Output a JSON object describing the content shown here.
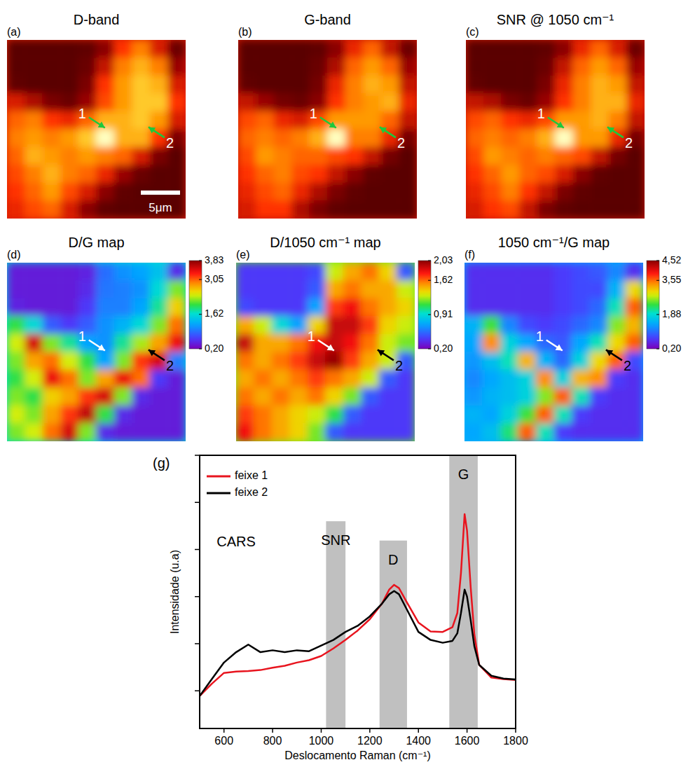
{
  "chart_data": [
    {
      "type": "heatmap",
      "title": "D-band",
      "panel_label": "(a)",
      "color": "hot",
      "zlim": [
        0,
        1
      ],
      "scale_bar": "5μm",
      "markers": [
        {
          "label": "1",
          "x": 5.6,
          "y": 5.0,
          "color": "#1ec83c"
        },
        {
          "label": "2",
          "x": 7.8,
          "y": 4.8,
          "color": "#1ec83c"
        }
      ],
      "cells": [
        [
          0.1,
          0.1,
          0.1,
          0.1,
          0.12,
          0.25,
          0.55,
          0.7,
          0.45,
          0.15
        ],
        [
          0.1,
          0.1,
          0.1,
          0.1,
          0.15,
          0.4,
          0.7,
          0.8,
          0.7,
          0.3
        ],
        [
          0.12,
          0.1,
          0.1,
          0.1,
          0.2,
          0.55,
          0.75,
          0.85,
          0.8,
          0.45
        ],
        [
          0.45,
          0.35,
          0.2,
          0.15,
          0.3,
          0.6,
          0.75,
          0.85,
          0.85,
          0.55
        ],
        [
          0.65,
          0.7,
          0.55,
          0.5,
          0.65,
          0.8,
          0.8,
          0.85,
          0.75,
          0.45
        ],
        [
          0.7,
          0.75,
          0.7,
          0.75,
          0.85,
          1.0,
          0.8,
          0.8,
          0.55,
          0.2
        ],
        [
          0.65,
          0.8,
          0.75,
          0.7,
          0.75,
          0.7,
          0.65,
          0.45,
          0.2,
          0.1
        ],
        [
          0.6,
          0.7,
          0.8,
          0.7,
          0.65,
          0.5,
          0.3,
          0.15,
          0.1,
          0.1
        ],
        [
          0.55,
          0.65,
          0.75,
          0.6,
          0.45,
          0.25,
          0.12,
          0.1,
          0.1,
          0.1
        ],
        [
          0.5,
          0.6,
          0.65,
          0.45,
          0.25,
          0.12,
          0.1,
          0.1,
          0.1,
          0.1
        ]
      ]
    },
    {
      "type": "heatmap",
      "title": "G-band",
      "panel_label": "(b)",
      "color": "hot",
      "zlim": [
        0,
        1
      ],
      "markers": [
        {
          "label": "1",
          "x": 5.6,
          "y": 5.0,
          "color": "#1ec83c"
        },
        {
          "label": "2",
          "x": 7.8,
          "y": 4.8,
          "color": "#1ec83c"
        }
      ],
      "cells": [
        [
          0.1,
          0.1,
          0.1,
          0.1,
          0.12,
          0.25,
          0.5,
          0.65,
          0.4,
          0.15
        ],
        [
          0.1,
          0.1,
          0.1,
          0.1,
          0.15,
          0.35,
          0.65,
          0.75,
          0.65,
          0.3
        ],
        [
          0.12,
          0.1,
          0.1,
          0.1,
          0.18,
          0.5,
          0.7,
          0.8,
          0.75,
          0.4
        ],
        [
          0.4,
          0.3,
          0.18,
          0.15,
          0.25,
          0.55,
          0.7,
          0.75,
          0.8,
          0.5
        ],
        [
          0.6,
          0.65,
          0.5,
          0.45,
          0.6,
          0.75,
          0.75,
          0.75,
          0.65,
          0.4
        ],
        [
          0.65,
          0.7,
          0.65,
          0.7,
          0.8,
          1.0,
          0.7,
          0.7,
          0.5,
          0.18
        ],
        [
          0.6,
          0.75,
          0.7,
          0.65,
          0.65,
          0.6,
          0.55,
          0.4,
          0.18,
          0.1
        ],
        [
          0.55,
          0.65,
          0.7,
          0.6,
          0.55,
          0.4,
          0.25,
          0.12,
          0.1,
          0.1
        ],
        [
          0.5,
          0.6,
          0.65,
          0.5,
          0.35,
          0.2,
          0.12,
          0.1,
          0.1,
          0.1
        ],
        [
          0.45,
          0.55,
          0.55,
          0.35,
          0.2,
          0.12,
          0.1,
          0.1,
          0.1,
          0.1
        ]
      ]
    },
    {
      "type": "heatmap",
      "title": "SNR @ 1050 cm⁻¹",
      "panel_label": "(c)",
      "color": "hot",
      "zlim": [
        0,
        1
      ],
      "markers": [
        {
          "label": "1",
          "x": 5.6,
          "y": 5.0,
          "color": "#1ec83c"
        },
        {
          "label": "2",
          "x": 7.8,
          "y": 4.8,
          "color": "#1ec83c"
        }
      ],
      "cells": [
        [
          0.1,
          0.1,
          0.1,
          0.1,
          0.12,
          0.25,
          0.5,
          0.65,
          0.45,
          0.15
        ],
        [
          0.1,
          0.1,
          0.1,
          0.1,
          0.15,
          0.4,
          0.65,
          0.75,
          0.65,
          0.3
        ],
        [
          0.12,
          0.1,
          0.1,
          0.1,
          0.2,
          0.5,
          0.7,
          0.8,
          0.75,
          0.4
        ],
        [
          0.4,
          0.35,
          0.2,
          0.15,
          0.3,
          0.55,
          0.7,
          0.8,
          0.8,
          0.5
        ],
        [
          0.6,
          0.65,
          0.55,
          0.5,
          0.6,
          0.75,
          0.75,
          0.8,
          0.7,
          0.4
        ],
        [
          0.65,
          0.7,
          0.65,
          0.7,
          0.8,
          1.0,
          0.75,
          0.75,
          0.5,
          0.18
        ],
        [
          0.6,
          0.75,
          0.7,
          0.65,
          0.7,
          0.65,
          0.6,
          0.4,
          0.18,
          0.1
        ],
        [
          0.55,
          0.65,
          0.75,
          0.65,
          0.6,
          0.45,
          0.25,
          0.12,
          0.1,
          0.1
        ],
        [
          0.5,
          0.6,
          0.7,
          0.55,
          0.4,
          0.2,
          0.12,
          0.1,
          0.1,
          0.1
        ],
        [
          0.45,
          0.55,
          0.6,
          0.4,
          0.2,
          0.12,
          0.1,
          0.1,
          0.1,
          0.1
        ]
      ]
    },
    {
      "type": "heatmap",
      "title": "D/G map",
      "panel_label": "(d)",
      "color": "rainbow",
      "colorbar": {
        "range": [
          0.2,
          3.83
        ],
        "ticks": [
          {
            "value": 0.2,
            "label": "0,20"
          },
          {
            "value": 1.62,
            "label": "1,62"
          },
          {
            "value": 3.05,
            "label": "3,05"
          },
          {
            "value": 3.83,
            "label": "3,83"
          }
        ]
      },
      "markers": [
        {
          "label": "1",
          "x": 5.6,
          "y": 5.0,
          "color": "#ffffff"
        },
        {
          "label": "2",
          "x": 7.8,
          "y": 4.8,
          "color": "#000000"
        }
      ],
      "cells": [
        [
          0.4,
          0.4,
          0.4,
          0.4,
          0.45,
          0.9,
          1.1,
          1.2,
          1.4,
          0.5
        ],
        [
          0.4,
          0.4,
          0.4,
          0.4,
          0.5,
          0.95,
          1.0,
          1.1,
          1.6,
          2.2
        ],
        [
          0.45,
          0.4,
          0.4,
          0.4,
          0.6,
          1.0,
          1.0,
          1.2,
          1.8,
          2.6
        ],
        [
          2.0,
          1.6,
          0.8,
          0.6,
          0.8,
          1.1,
          1.3,
          1.6,
          2.2,
          3.0
        ],
        [
          2.4,
          3.5,
          2.2,
          1.8,
          1.2,
          1.1,
          1.8,
          2.3,
          2.8,
          3.4
        ],
        [
          2.2,
          2.8,
          3.0,
          2.4,
          2.0,
          1.2,
          2.2,
          3.2,
          3.5,
          1.0
        ],
        [
          2.0,
          2.4,
          3.4,
          3.0,
          2.2,
          2.8,
          3.4,
          3.0,
          0.6,
          0.4
        ],
        [
          2.2,
          2.0,
          2.6,
          2.8,
          3.2,
          3.5,
          2.2,
          0.5,
          0.4,
          0.4
        ],
        [
          2.4,
          2.2,
          2.8,
          3.2,
          3.6,
          2.0,
          0.5,
          0.4,
          0.4,
          0.4
        ],
        [
          2.2,
          2.4,
          3.0,
          3.5,
          2.2,
          0.5,
          0.4,
          0.4,
          0.4,
          0.4
        ]
      ]
    },
    {
      "type": "heatmap",
      "title": "D/1050 cm⁻¹ map",
      "panel_label": "(e)",
      "color": "rainbow",
      "colorbar": {
        "range": [
          0.2,
          2.03
        ],
        "ticks": [
          {
            "value": 0.2,
            "label": "0,20"
          },
          {
            "value": 0.91,
            "label": "0,91"
          },
          {
            "value": 1.62,
            "label": "1,62"
          },
          {
            "value": 2.03,
            "label": "2,03"
          }
        ]
      },
      "markers": [
        {
          "label": "1",
          "x": 5.6,
          "y": 5.0,
          "color": "#ffffff"
        },
        {
          "label": "2",
          "x": 7.8,
          "y": 4.8,
          "color": "#000000"
        }
      ],
      "cells": [
        [
          0.4,
          0.4,
          0.4,
          0.4,
          0.45,
          1.3,
          1.5,
          1.6,
          1.4,
          0.5
        ],
        [
          0.4,
          0.4,
          0.4,
          0.4,
          0.5,
          1.5,
          1.6,
          1.5,
          1.5,
          1.3
        ],
        [
          0.45,
          0.4,
          0.4,
          0.4,
          0.7,
          1.7,
          1.8,
          1.6,
          1.5,
          1.4
        ],
        [
          1.5,
          1.3,
          0.9,
          0.7,
          1.4,
          1.9,
          1.9,
          1.7,
          1.4,
          1.3
        ],
        [
          1.9,
          1.5,
          1.5,
          1.6,
          1.8,
          1.9,
          1.8,
          1.6,
          1.3,
          1.2
        ],
        [
          1.6,
          1.5,
          1.6,
          1.7,
          1.9,
          2.0,
          1.7,
          1.5,
          1.3,
          0.5
        ],
        [
          1.5,
          1.6,
          1.5,
          1.6,
          1.7,
          1.6,
          1.5,
          1.3,
          0.5,
          0.4
        ],
        [
          1.6,
          1.5,
          1.6,
          1.5,
          1.6,
          1.4,
          1.2,
          0.5,
          0.4,
          0.4
        ],
        [
          1.7,
          1.6,
          1.5,
          1.4,
          1.3,
          1.1,
          0.5,
          0.4,
          0.4,
          0.4
        ],
        [
          1.8,
          1.6,
          1.5,
          1.4,
          1.2,
          0.5,
          0.4,
          0.4,
          0.4,
          0.4
        ]
      ]
    },
    {
      "type": "heatmap",
      "title": "1050 cm⁻¹/G map",
      "panel_label": "(f)",
      "color": "rainbow",
      "colorbar": {
        "range": [
          0.2,
          4.52
        ],
        "ticks": [
          {
            "value": 0.2,
            "label": "0,20"
          },
          {
            "value": 1.88,
            "label": "1,88"
          },
          {
            "value": 3.55,
            "label": "3,55"
          },
          {
            "value": 4.52,
            "label": "4,52"
          }
        ]
      },
      "markers": [
        {
          "label": "1",
          "x": 5.6,
          "y": 5.0,
          "color": "#ffffff"
        },
        {
          "label": "2",
          "x": 7.8,
          "y": 4.8,
          "color": "#000000"
        }
      ],
      "cells": [
        [
          0.6,
          0.6,
          0.6,
          0.6,
          0.6,
          0.7,
          0.8,
          0.9,
          1.2,
          0.6
        ],
        [
          0.6,
          0.6,
          0.6,
          0.6,
          0.6,
          0.7,
          0.8,
          0.8,
          1.5,
          3.0
        ],
        [
          0.6,
          0.6,
          0.6,
          0.6,
          0.6,
          0.7,
          0.8,
          1.0,
          2.0,
          3.6
        ],
        [
          1.5,
          2.4,
          1.2,
          0.8,
          0.7,
          0.8,
          1.0,
          1.2,
          2.6,
          3.2
        ],
        [
          1.4,
          3.4,
          1.8,
          1.4,
          1.0,
          0.9,
          1.4,
          2.0,
          3.0,
          3.6
        ],
        [
          1.3,
          1.6,
          2.0,
          3.2,
          1.5,
          1.0,
          1.8,
          3.0,
          3.6,
          0.8
        ],
        [
          1.2,
          1.4,
          1.6,
          1.8,
          3.4,
          1.8,
          3.2,
          3.4,
          0.7,
          0.6
        ],
        [
          1.3,
          1.5,
          1.6,
          1.8,
          2.6,
          3.6,
          2.0,
          0.7,
          0.6,
          0.6
        ],
        [
          1.5,
          1.4,
          1.8,
          2.4,
          3.6,
          2.0,
          0.7,
          0.6,
          0.6,
          0.6
        ],
        [
          1.4,
          1.6,
          2.2,
          3.6,
          2.0,
          0.7,
          0.6,
          0.6,
          0.6,
          0.6
        ]
      ]
    },
    {
      "type": "line",
      "panel_label": "(g)",
      "x_label": "Deslocamento Raman (cm⁻¹)",
      "y_label": "Intensidade (u.a)",
      "xlim": [
        500,
        1800
      ],
      "ylim": [
        0,
        5.8
      ],
      "xticks": [
        600,
        800,
        1000,
        1200,
        1400,
        1600,
        1800
      ],
      "yticks": [
        0.8,
        1.8,
        2.8,
        3.8,
        4.8,
        5.8
      ],
      "tick_labels": "x",
      "legend": "upper-left",
      "x": [
        500,
        550,
        600,
        650,
        700,
        750,
        800,
        850,
        900,
        950,
        1000,
        1050,
        1100,
        1150,
        1200,
        1250,
        1280,
        1300,
        1320,
        1350,
        1400,
        1450,
        1500,
        1540,
        1560,
        1575,
        1590,
        1600,
        1615,
        1630,
        1650,
        1700,
        1750,
        1800
      ],
      "series": [
        {
          "name": "feixe 1",
          "color": "#e8141e",
          "values": [
            0.69,
            0.95,
            1.18,
            1.21,
            1.22,
            1.24,
            1.29,
            1.33,
            1.4,
            1.45,
            1.54,
            1.7,
            1.88,
            2.08,
            2.32,
            2.65,
            2.95,
            3.05,
            2.98,
            2.7,
            2.25,
            2.06,
            2.05,
            2.15,
            2.45,
            3.3,
            4.55,
            4.2,
            3.0,
            2.0,
            1.35,
            1.08,
            1.05,
            1.03
          ]
        },
        {
          "name": "feixe 2",
          "color": "#000000",
          "values": [
            0.69,
            1.05,
            1.4,
            1.62,
            1.78,
            1.62,
            1.66,
            1.62,
            1.66,
            1.64,
            1.76,
            1.88,
            2.05,
            2.18,
            2.38,
            2.65,
            2.85,
            2.92,
            2.85,
            2.55,
            2.05,
            1.88,
            1.82,
            1.86,
            2.02,
            2.45,
            2.95,
            2.8,
            2.3,
            1.75,
            1.35,
            1.12,
            1.06,
            1.04
          ]
        }
      ],
      "bands": [
        {
          "label": "SNR",
          "x0": 1020,
          "x1": 1100,
          "top": 4.4
        },
        {
          "label": "D",
          "x0": 1240,
          "x1": 1353,
          "top": 3.99
        },
        {
          "label": "G",
          "x0": 1527,
          "x1": 1644,
          "top": 5.8
        }
      ],
      "annotations": [
        {
          "text": "CARS",
          "x": 650,
          "y": 3.87
        }
      ]
    }
  ]
}
